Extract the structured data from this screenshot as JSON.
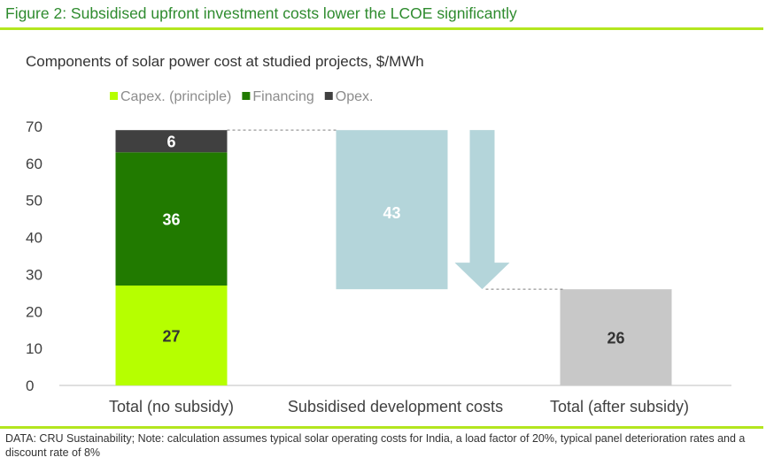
{
  "figure_title": "Figure 2: Subsidised upfront investment costs lower the LCOE significantly",
  "source_note": "DATA: CRU Sustainability; Note: calculation assumes typical solar operating costs for India, a load factor of 20%, typical panel deterioration rates and a discount rate of 8%",
  "colors": {
    "capex": "#b6ff00",
    "financing": "#217a00",
    "opex": "#404040",
    "subsidy": "#b4d5da",
    "after": "#c8c8c8",
    "axis_text": "#404040",
    "title_green": "#2e8b2e",
    "rule": "#b3e61f"
  },
  "chart_data": {
    "type": "bar",
    "subtype": "waterfall",
    "title": "Components of solar power cost at studied projects, $/MWh",
    "xlabel": "",
    "ylabel": "",
    "ylim": [
      0,
      70
    ],
    "yticks": [
      0,
      10,
      20,
      30,
      40,
      50,
      60,
      70
    ],
    "grid": false,
    "legend_position": "top",
    "categories": [
      "Total (no subsidy)",
      "Subsidised development costs",
      "Total (after subsidy)"
    ],
    "series": [
      {
        "name": "Capex. (principle)",
        "color_key": "capex",
        "values": [
          27,
          null,
          null
        ],
        "show_in_legend": true
      },
      {
        "name": "Financing",
        "color_key": "financing",
        "values": [
          36,
          null,
          null
        ],
        "show_in_legend": true
      },
      {
        "name": "Opex.",
        "color_key": "opex",
        "values": [
          6,
          null,
          null
        ],
        "show_in_legend": true
      }
    ],
    "waterfall_steps": [
      {
        "category": "Subsidised development costs",
        "from": 69,
        "to": 26,
        "value": 43,
        "label": "43",
        "color_key": "subsidy",
        "arrow": "down"
      },
      {
        "category": "Total (after subsidy)",
        "from": 0,
        "to": 26,
        "value": 26,
        "label": "26",
        "color_key": "after"
      }
    ],
    "data_labels": {
      "capex": "27",
      "financing": "36",
      "opex": "6"
    }
  }
}
